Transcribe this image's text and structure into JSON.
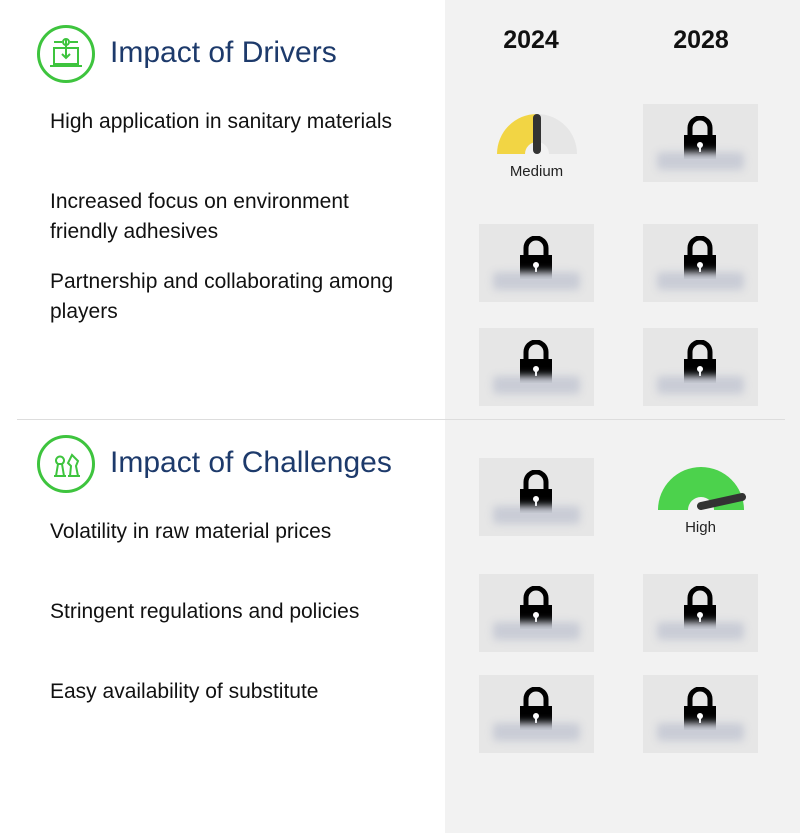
{
  "columns": [
    "2024",
    "2028"
  ],
  "drivers": {
    "title": "Impact of Drivers",
    "icon": "circuit-laptop-icon",
    "items": [
      "High application in sanitary materials",
      "Increased focus on environment friendly adhesives",
      "Partnership and collaborating among players"
    ]
  },
  "challenges": {
    "title": "Impact of Challenges",
    "icon": "chess-pieces-icon",
    "items": [
      "Volatility in raw material prices",
      "Stringent regulations and policies",
      "Easy availability of substitute"
    ]
  },
  "gauges": {
    "drivers_row1_2024": {
      "label": "Medium",
      "color": "#f2d544"
    },
    "challenges_row1_2028": {
      "label": "High",
      "color": "#4cd24c"
    }
  },
  "locked_icon": "lock-icon",
  "colors": {
    "title": "#1d3a6b",
    "icon": "#3ec43e",
    "panel": "#f2f2f2"
  }
}
